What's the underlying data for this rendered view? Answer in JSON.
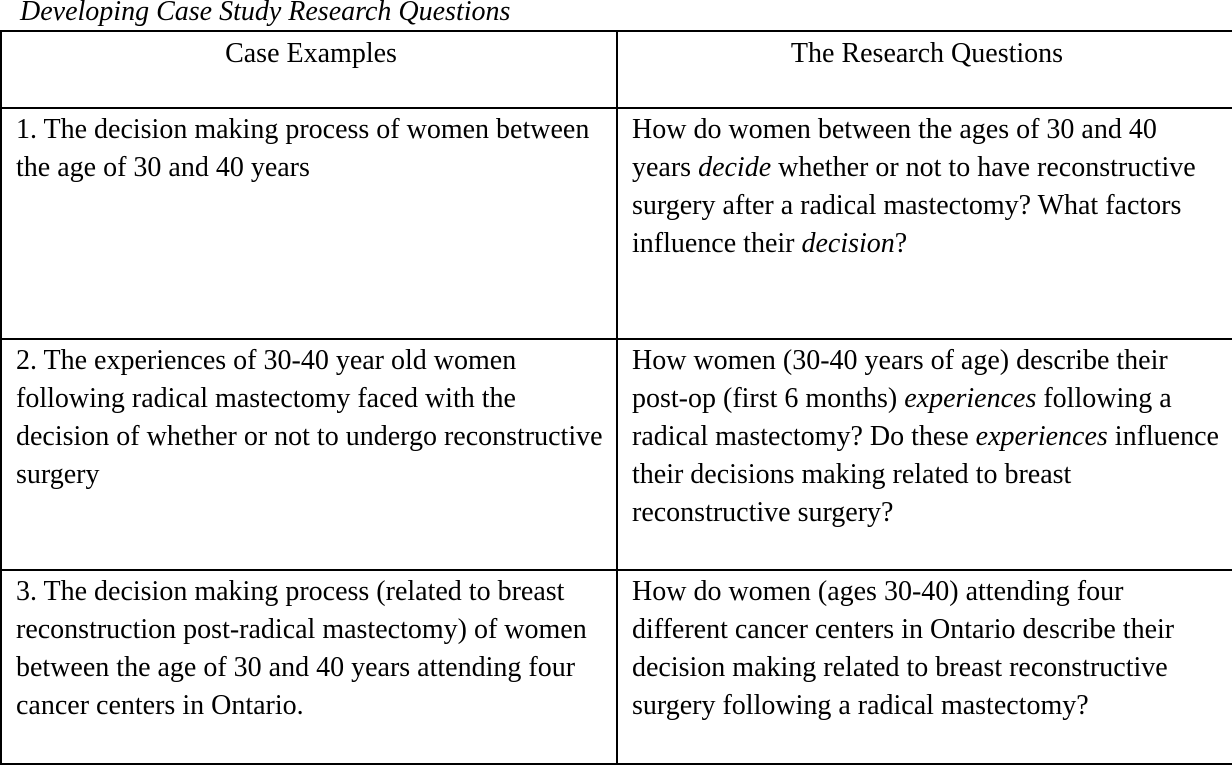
{
  "caption": "Developing Case Study Research Questions",
  "table": {
    "headers": [
      "Case Examples",
      "The Research Questions"
    ],
    "rows": [
      {
        "case": "1. The decision making process of women between the age of 30 and 40 years",
        "question": [
          {
            "t": "How do women between the ages of 30 and 40 years "
          },
          {
            "t": "decide",
            "i": true
          },
          {
            "t": " whether or not to have reconstructive surgery after a radical mastectomy? What factors influence their "
          },
          {
            "t": "decision",
            "i": true
          },
          {
            "t": "?"
          }
        ]
      },
      {
        "case": "2. The experiences of 30-40 year old women following radical mastectomy faced with the decision of whether or not to undergo reconstructive surgery",
        "question": [
          {
            "t": "How women (30-40 years of age) describe their post-op (first 6 months) "
          },
          {
            "t": "experiences",
            "i": true
          },
          {
            "t": " following a radical mastectomy? Do these "
          },
          {
            "t": "experiences",
            "i": true
          },
          {
            "t": " influence their decisions making related to breast reconstructive surgery?"
          }
        ]
      },
      {
        "case": "3. The decision making process (related to breast reconstruction post-radical mastectomy) of women between the age of 30 and 40 years attending four cancer centers in Ontario.",
        "question": [
          {
            "t": "How do women (ages 30-40) attending four different cancer centers in Ontario describe their decision making related to breast reconstructive surgery following a radical mastectomy?"
          }
        ]
      }
    ]
  }
}
